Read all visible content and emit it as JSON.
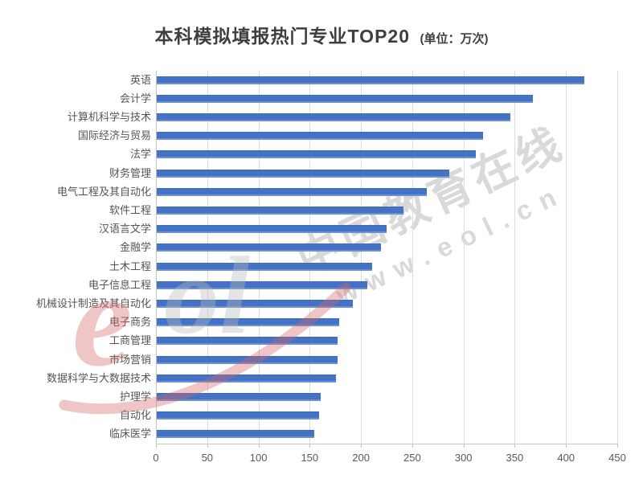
{
  "page": {
    "background": "#ffffff"
  },
  "header": {
    "title": "本科模拟填报热门专业TOP20",
    "unit_label": "(单位：万次)"
  },
  "chart_data": {
    "type": "bar",
    "orientation": "horizontal",
    "title": "本科模拟填报热门专业TOP20",
    "unit": "万次",
    "categories": [
      "英语",
      "会计学",
      "计算机科学与技术",
      "国际经济与贸易",
      "法学",
      "财务管理",
      "电气工程及其自动化",
      "软件工程",
      "汉语言文学",
      "金融学",
      "土木工程",
      "电子信息工程",
      "机械设计制造及其自动化",
      "电子商务",
      "工商管理",
      "市场营销",
      "数据科学与大数据技术",
      "护理学",
      "自动化",
      "临床医学"
    ],
    "values": [
      417,
      367,
      345,
      318,
      311,
      285,
      263,
      241,
      224,
      219,
      210,
      205,
      191,
      178,
      176,
      176,
      175,
      160,
      158,
      154
    ],
    "xlim": [
      0,
      450
    ],
    "xticks": [
      0,
      50,
      100,
      150,
      200,
      250,
      300,
      350,
      400,
      450
    ],
    "grid": true,
    "legend_position": "none",
    "bar_color": "#4472c4"
  },
  "watermarks": {
    "diagonal_text": "中国教育在线",
    "diagonal_subtext": "www.eol.cn",
    "logo_e": "e",
    "logo_ol": "ol",
    "gray_color": "#d9d9d9",
    "logo_red": "#d96a6a",
    "logo_gray": "#b9b9b9"
  },
  "colors": {
    "bar": "#4472c4",
    "gridline": "#dcdcdc",
    "axis": "#c2c2c2",
    "tick_label": "#595959",
    "category_label": "#555555",
    "title": "#3f3f3f"
  }
}
